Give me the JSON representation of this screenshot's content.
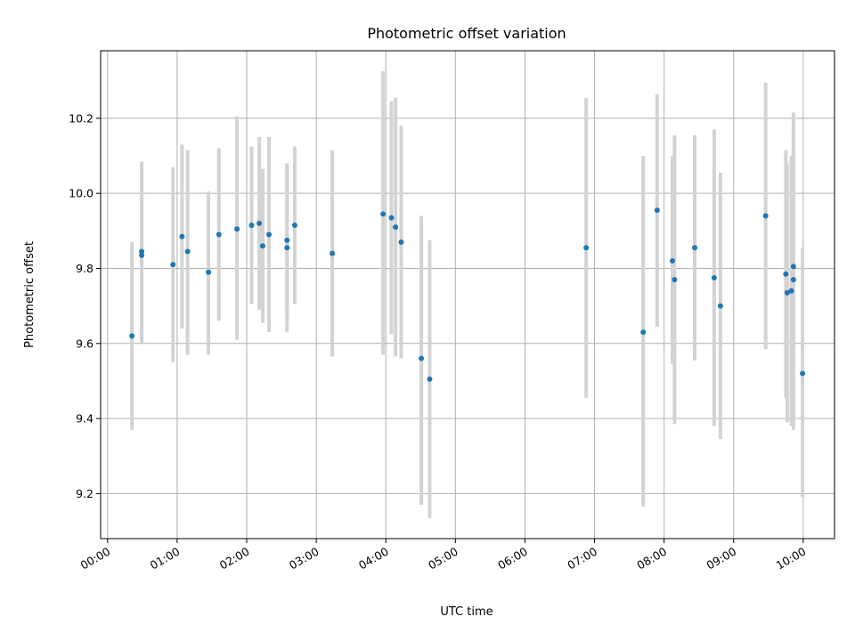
{
  "chart_data": {
    "type": "scatter",
    "title": "Photometric offset variation",
    "xlabel": "UTC time",
    "ylabel": "Photometric offset",
    "x_unit": "hours UTC",
    "xlim": [
      -0.1,
      10.45
    ],
    "ylim": [
      9.08,
      10.38
    ],
    "x_ticks": [
      {
        "value": 0,
        "label": "00:00"
      },
      {
        "value": 1,
        "label": "01:00"
      },
      {
        "value": 2,
        "label": "02:00"
      },
      {
        "value": 3,
        "label": "03:00"
      },
      {
        "value": 4,
        "label": "04:00"
      },
      {
        "value": 5,
        "label": "05:00"
      },
      {
        "value": 6,
        "label": "06:00"
      },
      {
        "value": 7,
        "label": "07:00"
      },
      {
        "value": 8,
        "label": "08:00"
      },
      {
        "value": 9,
        "label": "09:00"
      },
      {
        "value": 10,
        "label": "10:00"
      }
    ],
    "y_ticks": [
      {
        "value": 9.2,
        "label": "9.2"
      },
      {
        "value": 9.4,
        "label": "9.4"
      },
      {
        "value": 9.6,
        "label": "9.6"
      },
      {
        "value": 9.8,
        "label": "9.8"
      },
      {
        "value": 10.0,
        "label": "10.0"
      },
      {
        "value": 10.2,
        "label": "10.2"
      }
    ],
    "grid": true,
    "marker_color": "#1f77b4",
    "errorbar_color": "#d3d3d3",
    "points": [
      {
        "x": 0.35,
        "y": 9.62,
        "lo": 9.37,
        "hi": 9.87
      },
      {
        "x": 0.49,
        "y": 9.845,
        "lo": 9.61,
        "hi": 10.085
      },
      {
        "x": 0.49,
        "y": 9.835,
        "lo": 9.6,
        "hi": 10.07
      },
      {
        "x": 0.94,
        "y": 9.81,
        "lo": 9.55,
        "hi": 10.07
      },
      {
        "x": 1.07,
        "y": 9.885,
        "lo": 9.64,
        "hi": 10.13
      },
      {
        "x": 1.15,
        "y": 9.845,
        "lo": 9.57,
        "hi": 10.115
      },
      {
        "x": 1.45,
        "y": 9.79,
        "lo": 9.57,
        "hi": 10.005
      },
      {
        "x": 1.6,
        "y": 9.89,
        "lo": 9.66,
        "hi": 10.12
      },
      {
        "x": 1.86,
        "y": 9.905,
        "lo": 9.61,
        "hi": 10.205
      },
      {
        "x": 2.07,
        "y": 9.915,
        "lo": 9.705,
        "hi": 10.125
      },
      {
        "x": 2.18,
        "y": 9.92,
        "lo": 9.69,
        "hi": 10.15
      },
      {
        "x": 2.23,
        "y": 9.86,
        "lo": 9.655,
        "hi": 10.065
      },
      {
        "x": 2.32,
        "y": 9.89,
        "lo": 9.63,
        "hi": 10.15
      },
      {
        "x": 2.58,
        "y": 9.875,
        "lo": 9.67,
        "hi": 10.08
      },
      {
        "x": 2.58,
        "y": 9.855,
        "lo": 9.63,
        "hi": 10.08
      },
      {
        "x": 2.69,
        "y": 9.915,
        "lo": 9.705,
        "hi": 10.125
      },
      {
        "x": 3.23,
        "y": 9.84,
        "lo": 9.565,
        "hi": 10.115
      },
      {
        "x": 3.96,
        "y": 9.945,
        "lo": 9.57,
        "hi": 10.325
      },
      {
        "x": 4.08,
        "y": 9.935,
        "lo": 9.625,
        "hi": 10.245
      },
      {
        "x": 4.14,
        "y": 9.91,
        "lo": 9.565,
        "hi": 10.255
      },
      {
        "x": 4.22,
        "y": 9.87,
        "lo": 9.56,
        "hi": 10.18
      },
      {
        "x": 4.51,
        "y": 9.56,
        "lo": 9.17,
        "hi": 9.94
      },
      {
        "x": 4.63,
        "y": 9.505,
        "lo": 9.135,
        "hi": 9.875
      },
      {
        "x": 6.88,
        "y": 9.855,
        "lo": 9.455,
        "hi": 10.255
      },
      {
        "x": 7.7,
        "y": 9.63,
        "lo": 9.165,
        "hi": 10.1
      },
      {
        "x": 7.9,
        "y": 9.955,
        "lo": 9.645,
        "hi": 10.265
      },
      {
        "x": 8.12,
        "y": 9.82,
        "lo": 9.545,
        "hi": 10.1
      },
      {
        "x": 8.15,
        "y": 9.77,
        "lo": 9.385,
        "hi": 10.155
      },
      {
        "x": 8.44,
        "y": 9.855,
        "lo": 9.555,
        "hi": 10.155
      },
      {
        "x": 8.72,
        "y": 9.775,
        "lo": 9.38,
        "hi": 10.17
      },
      {
        "x": 8.81,
        "y": 9.7,
        "lo": 9.345,
        "hi": 10.055
      },
      {
        "x": 9.46,
        "y": 9.94,
        "lo": 9.585,
        "hi": 10.295
      },
      {
        "x": 9.75,
        "y": 9.785,
        "lo": 9.455,
        "hi": 10.115
      },
      {
        "x": 9.77,
        "y": 9.735,
        "lo": 9.39,
        "hi": 10.08
      },
      {
        "x": 9.83,
        "y": 9.74,
        "lo": 9.38,
        "hi": 10.1
      },
      {
        "x": 9.86,
        "y": 9.805,
        "lo": 9.39,
        "hi": 10.215
      },
      {
        "x": 9.86,
        "y": 9.77,
        "lo": 9.37,
        "hi": 10.17
      },
      {
        "x": 9.99,
        "y": 9.52,
        "lo": 9.19,
        "hi": 9.855
      }
    ]
  }
}
